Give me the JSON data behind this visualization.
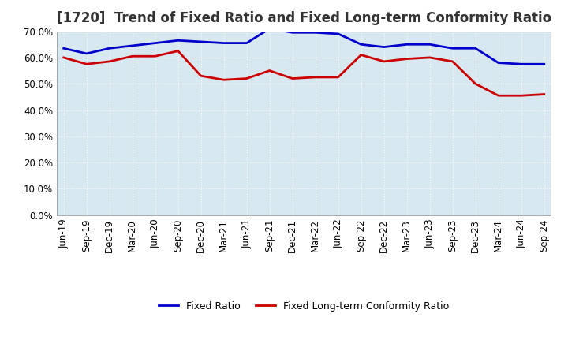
{
  "title": "[1720]  Trend of Fixed Ratio and Fixed Long-term Conformity Ratio",
  "x_labels": [
    "Jun-19",
    "Sep-19",
    "Dec-19",
    "Mar-20",
    "Jun-20",
    "Sep-20",
    "Dec-20",
    "Mar-21",
    "Jun-21",
    "Sep-21",
    "Dec-21",
    "Mar-22",
    "Jun-22",
    "Sep-22",
    "Dec-22",
    "Mar-23",
    "Jun-23",
    "Sep-23",
    "Dec-23",
    "Mar-24",
    "Jun-24",
    "Sep-24"
  ],
  "fixed_ratio": [
    63.5,
    61.5,
    63.5,
    64.5,
    65.5,
    66.5,
    66.0,
    65.5,
    65.5,
    71.0,
    69.5,
    69.5,
    69.0,
    65.0,
    64.0,
    65.0,
    65.0,
    63.5,
    63.5,
    58.0,
    57.5,
    57.5
  ],
  "fixed_ltcr": [
    60.0,
    57.5,
    58.5,
    60.5,
    60.5,
    62.5,
    53.0,
    51.5,
    52.0,
    55.0,
    52.0,
    52.5,
    52.5,
    61.0,
    58.5,
    59.5,
    60.0,
    58.5,
    50.0,
    45.5,
    45.5,
    46.0
  ],
  "fixed_ratio_color": "#0000CC",
  "fixed_ltcr_color": "#CC0000",
  "ylim_min": 0,
  "ylim_max": 70,
  "yticks": [
    0,
    10,
    20,
    30,
    40,
    50,
    60,
    70
  ],
  "ytick_labels": [
    "0.0%",
    "10.0%",
    "20.0%",
    "30.0%",
    "40.0%",
    "50.0%",
    "60.0%",
    "70.0%"
  ],
  "legend_fixed_ratio": "Fixed Ratio",
  "legend_fixed_ltcr": "Fixed Long-term Conformity Ratio",
  "background_color": "#FFFFFF",
  "plot_bg_color": "#D8E8F0",
  "grid_color": "#FFFFFF",
  "line_width": 2.0,
  "title_fontsize": 12,
  "tick_fontsize": 8.5,
  "legend_fontsize": 9
}
